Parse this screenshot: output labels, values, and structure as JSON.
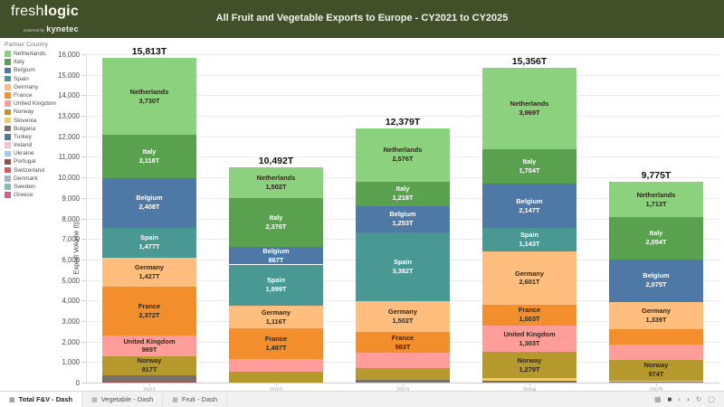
{
  "header": {
    "logo": {
      "part1": "fresh",
      "part2": "logic",
      "powered_by": "powered by",
      "brand": "kynetec"
    },
    "title": "All Fruit and Vegetable Exports to Europe - CY2021 to CY2025"
  },
  "legend": {
    "title": "Partner Country",
    "items": [
      {
        "label": "Netherlands",
        "color": "#8CD17D"
      },
      {
        "label": "Italy",
        "color": "#59A14F"
      },
      {
        "label": "Belgium",
        "color": "#4E79A7"
      },
      {
        "label": "Spain",
        "color": "#499894"
      },
      {
        "label": "Germany",
        "color": "#FFBE7D"
      },
      {
        "label": "France",
        "color": "#F28E2B"
      },
      {
        "label": "United Kingdom",
        "color": "#FF9D9A"
      },
      {
        "label": "Norway",
        "color": "#B6992D"
      },
      {
        "label": "Slovenia",
        "color": "#F1CE63"
      },
      {
        "label": "Bulgaria",
        "color": "#79706E"
      },
      {
        "label": "Turkey",
        "color": "#5A7691"
      },
      {
        "label": "Ireland",
        "color": "#FABFD2"
      },
      {
        "label": "Ukraine",
        "color": "#A0CBE8"
      },
      {
        "label": "Portugal",
        "color": "#94524A"
      },
      {
        "label": "Switzerland",
        "color": "#E15759"
      },
      {
        "label": "Denmark",
        "color": "#A3B5C4"
      },
      {
        "label": "Sweden",
        "color": "#86BCB6"
      },
      {
        "label": "Greece",
        "color": "#C96487"
      }
    ]
  },
  "chart_data": {
    "type": "bar",
    "stacked": true,
    "title": "All Fruit and Vegetable Exports to Europe - CY2021 to CY2025",
    "xlabel": "",
    "ylabel": "Export Volume (t)",
    "ylim": [
      0,
      16000
    ],
    "ytick_step": 1000,
    "grid": true,
    "legend_position": "left",
    "categories": [
      "2021",
      "2022",
      "2023",
      "2024",
      "2025"
    ],
    "totals": [
      15813,
      10492,
      12379,
      15356,
      9775
    ],
    "total_labels": [
      "15,813T",
      "10,492T",
      "12,379T",
      "15,356T",
      "9,775T"
    ],
    "series": [
      {
        "name": "Netherlands",
        "color": "#8CD17D",
        "text": "dark",
        "values": [
          3730,
          1502,
          2576,
          3969,
          1713
        ],
        "labeled": [
          true,
          true,
          true,
          true,
          true
        ]
      },
      {
        "name": "Italy",
        "color": "#59A14F",
        "text": "light",
        "values": [
          2118,
          2370,
          1218,
          1704,
          2054
        ],
        "labeled": [
          true,
          true,
          true,
          true,
          true
        ]
      },
      {
        "name": "Belgium",
        "color": "#4E79A7",
        "text": "light",
        "values": [
          2408,
          867,
          1253,
          2147,
          2075
        ],
        "labeled": [
          true,
          true,
          true,
          true,
          true
        ]
      },
      {
        "name": "Spain",
        "color": "#499894",
        "text": "light",
        "values": [
          1477,
          1999,
          3382,
          1143,
          0
        ],
        "labeled": [
          true,
          true,
          true,
          true,
          false
        ]
      },
      {
        "name": "Germany",
        "color": "#FFBE7D",
        "text": "dark",
        "values": [
          1427,
          1116,
          1502,
          2601,
          1339
        ],
        "labeled": [
          true,
          true,
          true,
          true,
          true
        ]
      },
      {
        "name": "France",
        "color": "#F28E2B",
        "text": "dark",
        "values": [
          2372,
          1497,
          983,
          1003,
          740
        ],
        "labeled": [
          true,
          true,
          true,
          true,
          false
        ]
      },
      {
        "name": "United Kingdom",
        "color": "#FF9D9A",
        "text": "dark",
        "values": [
          989,
          610,
          750,
          1303,
          770
        ],
        "labeled": [
          true,
          false,
          false,
          true,
          false
        ]
      },
      {
        "name": "Norway",
        "color": "#B6992D",
        "text": "dark",
        "values": [
          917,
          531,
          600,
          1279,
          974
        ],
        "labeled": [
          true,
          false,
          false,
          true,
          true
        ]
      },
      {
        "name": "Slovenia",
        "color": "#F1CE63",
        "text": "dark",
        "values": [
          0,
          0,
          0,
          140,
          60
        ],
        "labeled": [
          false,
          false,
          false,
          false,
          false
        ]
      },
      {
        "name": "Bulgaria",
        "color": "#79706E",
        "text": "light",
        "values": [
          315,
          0,
          115,
          67,
          50
        ],
        "labeled": [
          false,
          false,
          false,
          false,
          false
        ]
      },
      {
        "name": "Portugal",
        "color": "#94524A",
        "text": "light",
        "values": [
          60,
          0,
          0,
          0,
          0
        ],
        "labeled": [
          false,
          false,
          false,
          false,
          false
        ]
      }
    ]
  },
  "footer": {
    "tabs": [
      {
        "label": "Total F&V - Dash",
        "active": true
      },
      {
        "label": "Vegetable - Dash",
        "active": false
      },
      {
        "label": "Fruit - Dash",
        "active": false
      }
    ],
    "icon_glyphs": {
      "grid": "▦",
      "square": "■",
      "chevron_left": "‹",
      "chevron_right": "›",
      "refresh": "↻",
      "export": "▢"
    }
  }
}
